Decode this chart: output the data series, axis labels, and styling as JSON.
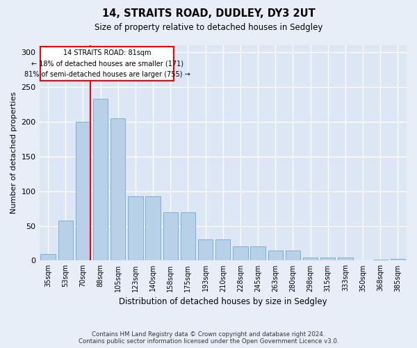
{
  "title": "14, STRAITS ROAD, DUDLEY, DY3 2UT",
  "subtitle": "Size of property relative to detached houses in Sedgley",
  "xlabel": "Distribution of detached houses by size in Sedgley",
  "ylabel": "Number of detached properties",
  "categories": [
    "35sqm",
    "53sqm",
    "70sqm",
    "88sqm",
    "105sqm",
    "123sqm",
    "140sqm",
    "158sqm",
    "175sqm",
    "193sqm",
    "210sqm",
    "228sqm",
    "245sqm",
    "263sqm",
    "280sqm",
    "298sqm",
    "315sqm",
    "333sqm",
    "350sqm",
    "368sqm",
    "385sqm"
  ],
  "values": [
    9,
    58,
    200,
    233,
    205,
    93,
    93,
    70,
    70,
    30,
    30,
    20,
    20,
    14,
    14,
    4,
    4,
    4,
    0,
    1,
    2
  ],
  "bar_color": "#b8d0e8",
  "bar_edge_color": "#7aafd4",
  "plot_bg_color": "#dce6f5",
  "fig_bg_color": "#e8eef8",
  "grid_color": "#ffffff",
  "annotation_text_line1": "14 STRAITS ROAD: 81sqm",
  "annotation_text_line2": "← 18% of detached houses are smaller (171)",
  "annotation_text_line3": "81% of semi-detached houses are larger (755) →",
  "vline_x": 2.425,
  "ylim": [
    0,
    310
  ],
  "yticks": [
    0,
    50,
    100,
    150,
    200,
    250,
    300
  ],
  "footer1": "Contains HM Land Registry data © Crown copyright and database right 2024.",
  "footer2": "Contains public sector information licensed under the Open Government Licence v3.0."
}
